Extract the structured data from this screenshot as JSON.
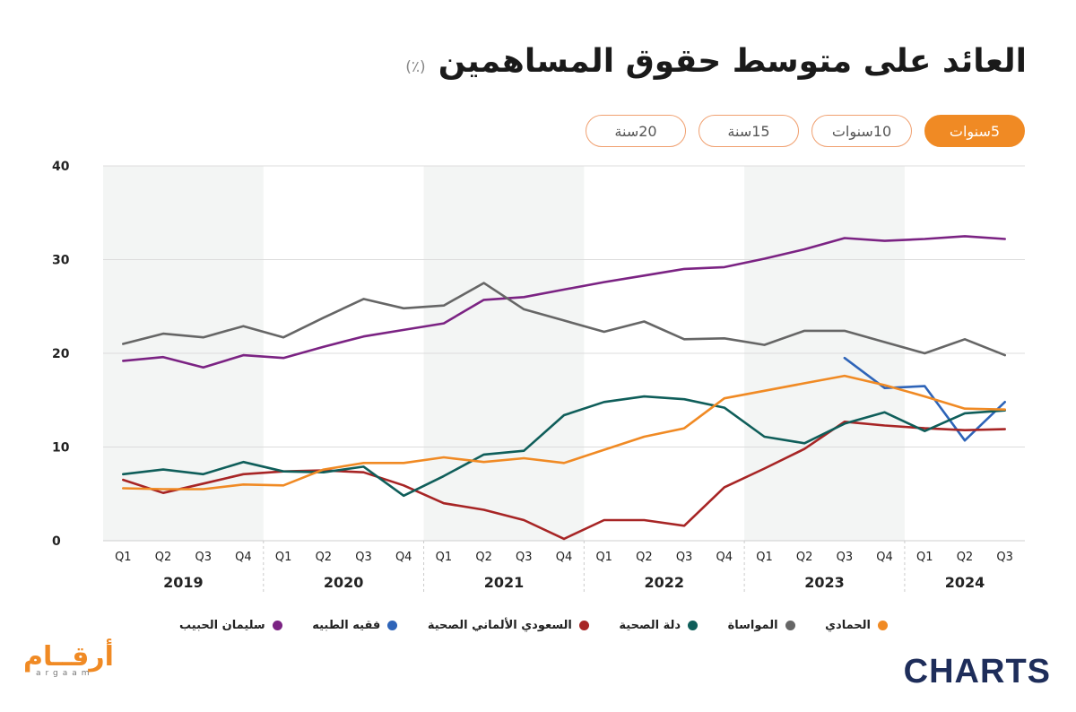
{
  "header": {
    "title": "العائد على متوسط حقوق المساهمين",
    "unit": "(٪)"
  },
  "tabs": [
    {
      "label": "5سنوات",
      "active": true
    },
    {
      "label": "10سنوات",
      "active": false
    },
    {
      "label": "15سنة",
      "active": false
    },
    {
      "label": "20سنة",
      "active": false
    }
  ],
  "logos": {
    "left_ar": "أرقــام",
    "left_en": "argaam",
    "right": "CHARTS"
  },
  "chart_data": {
    "type": "line",
    "title": "العائد على متوسط حقوق المساهمين",
    "ylabel": "(٪)",
    "ylim": [
      0,
      40
    ],
    "yticks": [
      0,
      10,
      20,
      30,
      40
    ],
    "grid": true,
    "legend_position": "bottom",
    "years": [
      "2019",
      "2020",
      "2021",
      "2022",
      "2023",
      "2024"
    ],
    "x": [
      "Q1",
      "Q2",
      "Q3",
      "Q4",
      "Q1",
      "Q2",
      "Q3",
      "Q4",
      "Q1",
      "Q2",
      "Q3",
      "Q4",
      "Q1",
      "Q2",
      "Q3",
      "Q4",
      "Q1",
      "Q2",
      "Q3",
      "Q4",
      "Q1",
      "Q2",
      "Q3"
    ],
    "series": [
      {
        "name": "سليمان الحبيب",
        "color": "#7b2383",
        "values": [
          19.2,
          19.6,
          18.5,
          19.8,
          19.5,
          20.7,
          21.8,
          22.5,
          23.2,
          25.7,
          26.0,
          26.8,
          27.6,
          28.3,
          29.0,
          29.2,
          30.1,
          31.1,
          32.3,
          32.0,
          32.2,
          32.5,
          32.2
        ]
      },
      {
        "name": "فقيه الطبيه",
        "color": "#2e64b8",
        "values": [
          null,
          null,
          null,
          null,
          null,
          null,
          null,
          null,
          null,
          null,
          null,
          null,
          null,
          null,
          null,
          null,
          null,
          null,
          19.5,
          16.3,
          16.5,
          10.7,
          14.8
        ]
      },
      {
        "name": "السعودي الألماني الصحية",
        "color": "#a72525",
        "values": [
          6.5,
          5.1,
          6.1,
          7.1,
          7.4,
          7.5,
          7.3,
          5.9,
          4.0,
          3.3,
          2.2,
          0.2,
          2.2,
          2.2,
          1.6,
          5.7,
          7.7,
          9.8,
          12.7,
          12.3,
          12.0,
          11.8,
          11.9
        ]
      },
      {
        "name": "دلة الصحية",
        "color": "#0f5e5a",
        "values": [
          7.1,
          7.6,
          7.1,
          8.4,
          7.4,
          7.3,
          7.9,
          4.8,
          6.9,
          9.2,
          9.6,
          13.4,
          14.8,
          15.4,
          15.1,
          14.2,
          11.1,
          10.4,
          12.5,
          13.7,
          11.7,
          13.6,
          13.9
        ]
      },
      {
        "name": "المواساة",
        "color": "#666666",
        "values": [
          21.0,
          22.1,
          21.7,
          22.9,
          21.7,
          23.8,
          25.8,
          24.8,
          25.1,
          27.5,
          24.7,
          23.5,
          22.3,
          23.4,
          21.5,
          21.6,
          20.9,
          22.4,
          22.4,
          21.2,
          20.0,
          21.5,
          19.8
        ]
      },
      {
        "name": "الحمادي",
        "color": "#f08a24",
        "values": [
          5.6,
          5.5,
          5.5,
          6.0,
          5.9,
          7.6,
          8.3,
          8.3,
          8.9,
          8.4,
          8.8,
          8.3,
          9.7,
          11.1,
          12.0,
          15.2,
          16.0,
          16.8,
          17.6,
          16.6,
          15.4,
          14.1,
          14.0
        ]
      }
    ]
  }
}
